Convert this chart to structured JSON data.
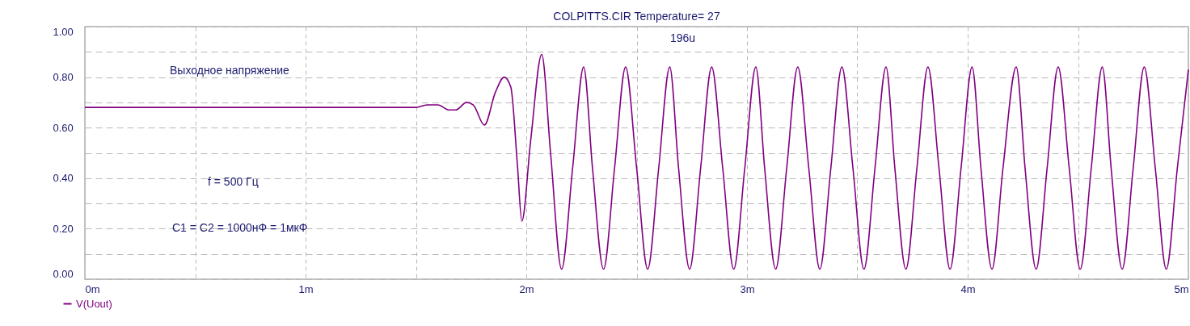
{
  "chart_data": {
    "type": "line",
    "title": "COLPITTS.CIR Temperature= 27",
    "x": [
      0,
      1.5,
      1.55,
      1.6,
      1.65,
      1.68,
      1.73,
      1.76,
      1.81,
      1.86,
      1.9,
      1.93,
      1.96,
      1.98,
      2.02,
      2.07,
      2.11,
      2.16,
      2.21,
      2.26,
      2.3,
      2.35,
      2.4,
      2.45,
      2.5,
      2.55,
      2.6,
      2.65,
      2.69,
      2.74,
      2.79,
      2.84,
      2.89,
      2.94,
      2.99,
      3.04,
      3.08,
      3.13,
      3.18,
      3.23,
      3.28,
      3.33,
      3.38,
      3.43,
      3.48,
      3.53,
      3.58,
      3.63,
      3.67,
      3.72,
      3.77,
      3.82,
      3.87,
      3.92,
      3.97,
      4.02,
      4.06,
      4.11,
      4.16,
      4.22,
      4.26,
      4.31,
      4.36,
      4.41,
      4.46,
      4.51,
      4.56,
      4.61,
      4.65,
      4.7,
      4.75,
      4.8,
      4.85,
      4.9,
      4.95,
      5.0
    ],
    "series": [
      {
        "name": "V(Uout)",
        "color": "#800080",
        "values": [
          0.68,
          0.68,
          0.69,
          0.69,
          0.67,
          0.67,
          0.7,
          0.69,
          0.61,
          0.74,
          0.8,
          0.76,
          0.45,
          0.23,
          0.55,
          0.89,
          0.5,
          0.04,
          0.44,
          0.84,
          0.44,
          0.04,
          0.44,
          0.84,
          0.44,
          0.04,
          0.44,
          0.84,
          0.44,
          0.04,
          0.44,
          0.84,
          0.44,
          0.04,
          0.44,
          0.84,
          0.44,
          0.04,
          0.44,
          0.84,
          0.44,
          0.04,
          0.44,
          0.84,
          0.44,
          0.04,
          0.44,
          0.84,
          0.44,
          0.04,
          0.44,
          0.84,
          0.44,
          0.04,
          0.44,
          0.84,
          0.44,
          0.04,
          0.44,
          0.84,
          0.44,
          0.04,
          0.44,
          0.84,
          0.44,
          0.04,
          0.44,
          0.84,
          0.44,
          0.04,
          0.44,
          0.84,
          0.44,
          0.04,
          0.44,
          0.83
        ]
      }
    ],
    "xlim": [
      0,
      5
    ],
    "xticks": [
      {
        "value": 0,
        "label": "0m"
      },
      {
        "value": 0.5,
        "label": null
      },
      {
        "value": 1,
        "label": "1m"
      },
      {
        "value": 1.5,
        "label": null
      },
      {
        "value": 2,
        "label": "2m"
      },
      {
        "value": 2.5,
        "label": null
      },
      {
        "value": 3,
        "label": "3m"
      },
      {
        "value": 3.5,
        "label": null
      },
      {
        "value": 4,
        "label": "4m"
      },
      {
        "value": 4.5,
        "label": null
      },
      {
        "value": 5,
        "label": "5m"
      }
    ],
    "ylim": [
      0,
      1
    ],
    "yticks": [
      {
        "value": 0,
        "label": "0.00"
      },
      {
        "value": 0.1,
        "label": null
      },
      {
        "value": 0.2,
        "label": "0.20"
      },
      {
        "value": 0.3,
        "label": null
      },
      {
        "value": 0.4,
        "label": "0.40"
      },
      {
        "value": 0.5,
        "label": null
      },
      {
        "value": 0.6,
        "label": "0.60"
      },
      {
        "value": 0.7,
        "label": null
      },
      {
        "value": 0.8,
        "label": "0.80"
      },
      {
        "value": 0.9,
        "label": null
      },
      {
        "value": 1,
        "label": "1.00"
      }
    ],
    "grid": true,
    "legend": "bottom left",
    "annotations": [
      "Выходное напряжение",
      "f = 500 Гц",
      "C1 = C2 = 1000нФ = 1мкФ",
      "196u"
    ]
  }
}
